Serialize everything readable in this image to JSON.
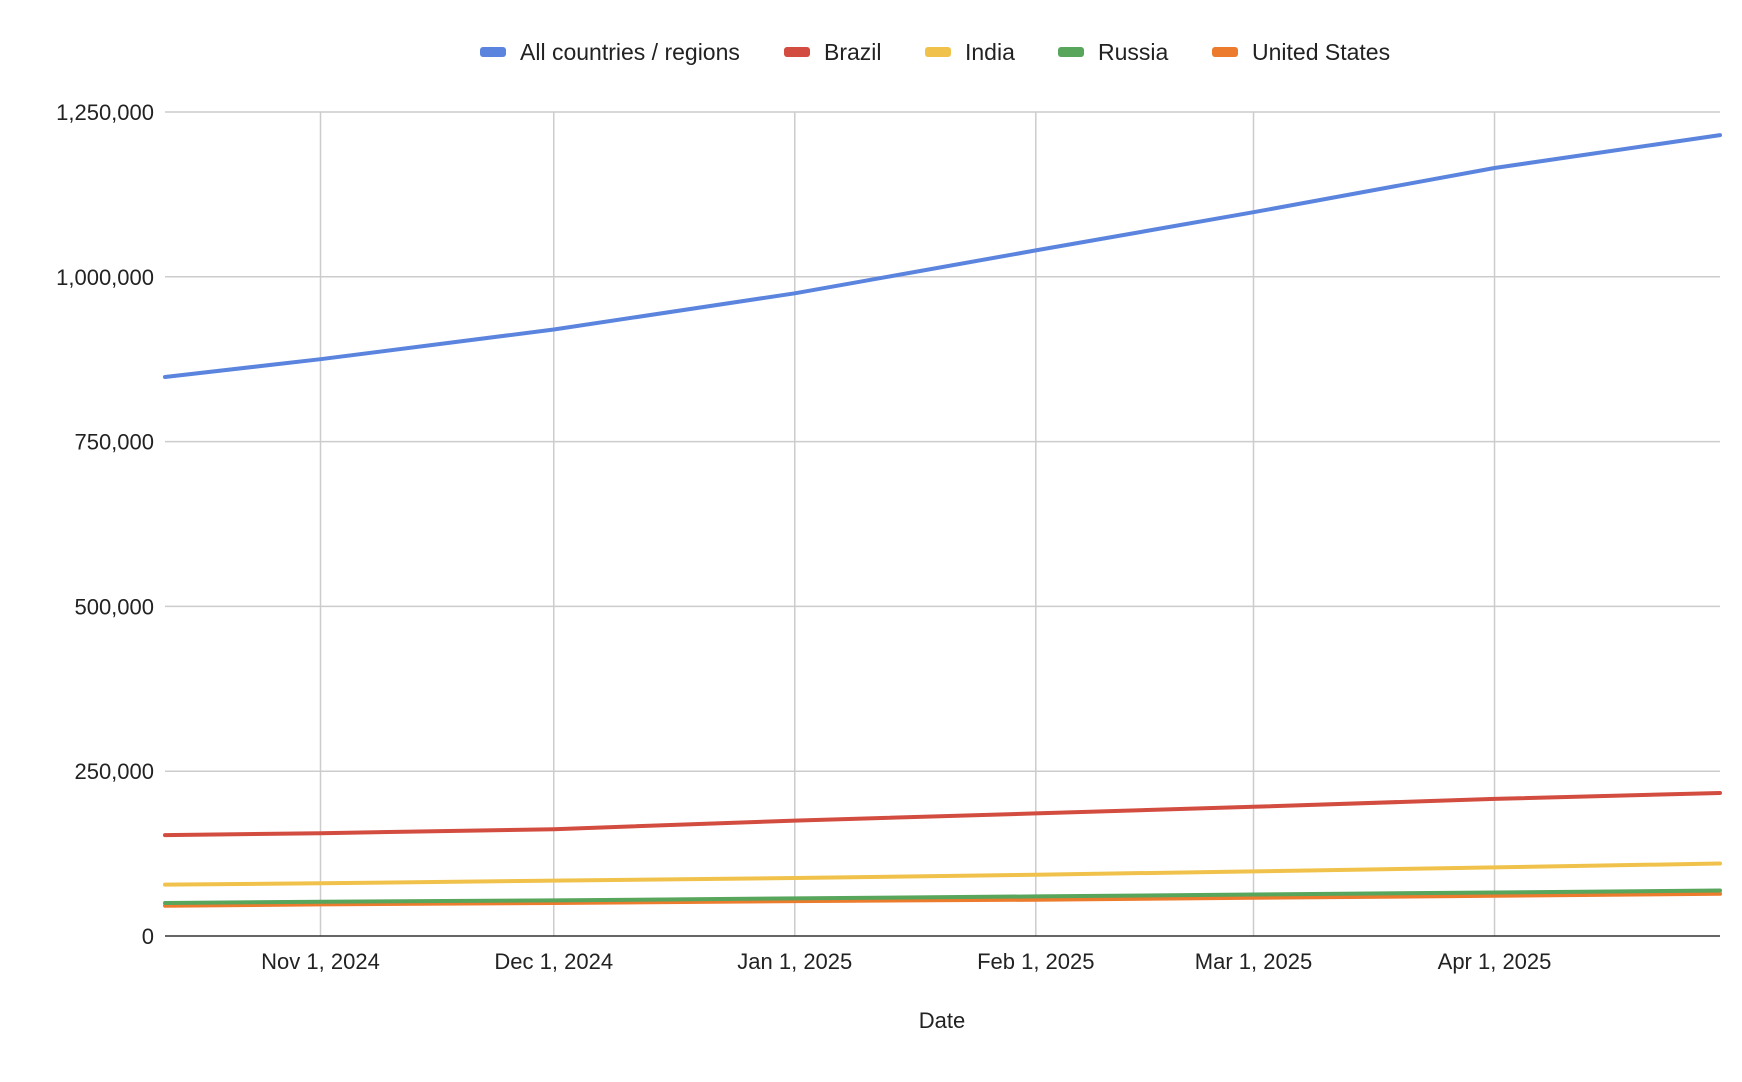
{
  "chart_data": {
    "type": "line",
    "title": "",
    "xlabel": "Date",
    "ylabel": "",
    "x_type": "date",
    "xlim": [
      "2024-10-12",
      "2025-04-30"
    ],
    "ylim": [
      0,
      1250000
    ],
    "y_ticks": [
      0,
      250000,
      500000,
      750000,
      1000000,
      1250000
    ],
    "y_tick_labels": [
      "0",
      "250,000",
      "500,000",
      "750,000",
      "1,000,000",
      "1,250,000"
    ],
    "x_ticks": [
      "2024-11-01",
      "2024-12-01",
      "2025-01-01",
      "2025-02-01",
      "2025-03-01",
      "2025-04-01"
    ],
    "x_tick_labels": [
      "Nov 1, 2024",
      "Dec 1, 2024",
      "Jan 1, 2025",
      "Feb 1, 2025",
      "Mar 1, 2025",
      "Apr 1, 2025"
    ],
    "grid": true,
    "legend_position": "top",
    "x": [
      "2024-10-12",
      "2024-11-01",
      "2024-12-01",
      "2025-01-01",
      "2025-02-01",
      "2025-03-01",
      "2025-04-01",
      "2025-04-30"
    ],
    "series": [
      {
        "name": "All countries / regions",
        "color": "#5b84de",
        "values": [
          848000,
          875000,
          920000,
          975000,
          1040000,
          1098000,
          1165000,
          1215000
        ]
      },
      {
        "name": "Brazil",
        "color": "#d24c3f",
        "values": [
          153000,
          156000,
          162000,
          175000,
          186000,
          196000,
          208000,
          217000
        ]
      },
      {
        "name": "India",
        "color": "#f0c24b",
        "values": [
          78000,
          80000,
          84000,
          88000,
          93000,
          98000,
          104000,
          110000
        ]
      },
      {
        "name": "Russia",
        "color": "#58a55c",
        "values": [
          50000,
          52000,
          54000,
          57000,
          60000,
          63000,
          66000,
          69000
        ]
      },
      {
        "name": "United States",
        "color": "#ec7b2e",
        "values": [
          46000,
          48000,
          50000,
          53000,
          55000,
          58000,
          61000,
          64000
        ]
      }
    ]
  }
}
